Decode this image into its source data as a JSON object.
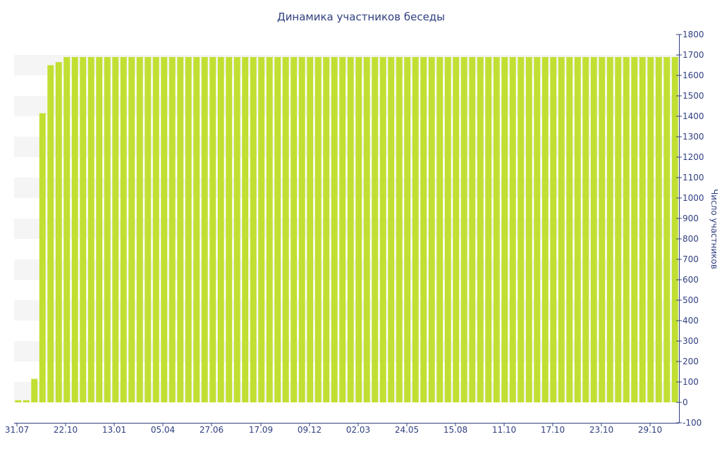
{
  "chart_data": {
    "type": "bar",
    "title": "Динамика участников беседы",
    "xlabel": "",
    "ylabel": "Число участников",
    "ylim": [
      -100,
      1800
    ],
    "yticks": [
      -100,
      0,
      100,
      200,
      300,
      400,
      500,
      600,
      700,
      800,
      900,
      1000,
      1100,
      1200,
      1300,
      1400,
      1500,
      1600,
      1700,
      1800
    ],
    "y_axis_side": "right",
    "x_tick_labels": [
      "31.07",
      "22.10",
      "13.01",
      "05.04",
      "27.06",
      "17.09",
      "09.12",
      "02.03",
      "24.05",
      "15.08",
      "11.10",
      "17.10",
      "23.10",
      "29.10"
    ],
    "grid": "alternating horizontal bands",
    "legend": "none",
    "bar_color": "#c1df32",
    "band_color": "#f5f5f5",
    "axis_color": "#2f3f7f",
    "values": [
      10,
      10,
      115,
      1415,
      1650,
      1665,
      1690,
      1690,
      1690,
      1690,
      1690,
      1690,
      1690,
      1690,
      1690,
      1690,
      1690,
      1690,
      1690,
      1690,
      1690,
      1690,
      1690,
      1690,
      1690,
      1690,
      1690,
      1690,
      1690,
      1690,
      1690,
      1690,
      1690,
      1690,
      1690,
      1690,
      1690,
      1690,
      1690,
      1690,
      1690,
      1690,
      1690,
      1690,
      1690,
      1690,
      1690,
      1690,
      1690,
      1690,
      1690,
      1690,
      1690,
      1690,
      1690,
      1690,
      1690,
      1690,
      1690,
      1690,
      1690,
      1690,
      1690,
      1690,
      1690,
      1690,
      1690,
      1690,
      1690,
      1690,
      1690,
      1690,
      1690,
      1690,
      1690,
      1690,
      1690,
      1690,
      1690,
      1690,
      1690,
      1690
    ]
  }
}
